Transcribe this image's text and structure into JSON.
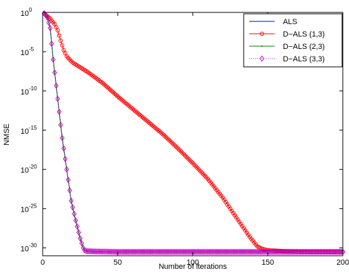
{
  "chart_data": {
    "type": "line",
    "title": "",
    "xlabel": "Number of iterations",
    "ylabel": "NMSE",
    "xlim": [
      0,
      200
    ],
    "ylim_log10": [
      -31,
      0
    ],
    "yscale": "log",
    "grid": false,
    "legend_placement": "top-right",
    "x_ticks": [
      0,
      50,
      100,
      150,
      200
    ],
    "x_tick_labels": [
      "0",
      "50",
      "100",
      "150",
      "200"
    ],
    "y_ticks_log10": [
      0,
      -5,
      -10,
      -15,
      -20,
      -25,
      -30
    ],
    "y_tick_labels": [
      {
        "base": "10",
        "exp": "0"
      },
      {
        "base": "10",
        "exp": "-5"
      },
      {
        "base": "10",
        "exp": "-10"
      },
      {
        "base": "10",
        "exp": "-15"
      },
      {
        "base": "10",
        "exp": "-20"
      },
      {
        "base": "10",
        "exp": "-25"
      },
      {
        "base": "10",
        "exp": "-30"
      }
    ],
    "series": [
      {
        "name": "ALS",
        "color": "#0000ff",
        "line_style": "solid",
        "marker": "none",
        "points_log10": [
          [
            1,
            -0.1
          ],
          [
            3,
            -0.6
          ],
          [
            5,
            -2.0
          ],
          [
            7,
            -6.0
          ],
          [
            10,
            -11.0
          ],
          [
            13,
            -16.0
          ],
          [
            16,
            -20.0
          ],
          [
            19,
            -24.0
          ],
          [
            22,
            -26.5
          ],
          [
            25,
            -28.8
          ],
          [
            27,
            -30.0
          ],
          [
            28,
            -30.3
          ],
          [
            29,
            -30.4
          ],
          [
            35,
            -30.45
          ],
          [
            50,
            -30.5
          ],
          [
            100,
            -30.5
          ],
          [
            150,
            -30.5
          ],
          [
            200,
            -30.5
          ]
        ]
      },
      {
        "name": "D−ALS (1,3)",
        "color": "#ff0000",
        "line_style": "solid",
        "marker": "circle",
        "points_log10": [
          [
            1,
            -0.15
          ],
          [
            5,
            -0.8
          ],
          [
            8,
            -1.5
          ],
          [
            10,
            -2.3
          ],
          [
            12,
            -3.6
          ],
          [
            14,
            -4.8
          ],
          [
            16,
            -5.6
          ],
          [
            20,
            -6.4
          ],
          [
            30,
            -7.6
          ],
          [
            40,
            -9.0
          ],
          [
            50,
            -10.7
          ],
          [
            60,
            -12.3
          ],
          [
            70,
            -13.9
          ],
          [
            80,
            -15.5
          ],
          [
            90,
            -17.3
          ],
          [
            100,
            -19.2
          ],
          [
            110,
            -21.2
          ],
          [
            120,
            -23.6
          ],
          [
            130,
            -26.4
          ],
          [
            138,
            -28.6
          ],
          [
            143,
            -29.8
          ],
          [
            146,
            -30.1
          ],
          [
            150,
            -30.3
          ],
          [
            160,
            -30.4
          ],
          [
            170,
            -30.45
          ],
          [
            200,
            -30.5
          ]
        ]
      },
      {
        "name": "D−ALS (2,3)",
        "color": "#008000",
        "line_style": "solid",
        "marker": "dot",
        "points_log10": [
          [
            1,
            -0.1
          ],
          [
            3,
            -0.6
          ],
          [
            5,
            -2.0
          ],
          [
            7,
            -6.0
          ],
          [
            10,
            -11.0
          ],
          [
            13,
            -16.0
          ],
          [
            16,
            -20.0
          ],
          [
            19,
            -24.0
          ],
          [
            22,
            -26.5
          ],
          [
            25,
            -28.8
          ],
          [
            27,
            -30.0
          ],
          [
            28,
            -30.3
          ],
          [
            29,
            -30.4
          ],
          [
            35,
            -30.45
          ],
          [
            50,
            -30.5
          ],
          [
            100,
            -30.5
          ],
          [
            150,
            -30.5
          ],
          [
            200,
            -30.5
          ]
        ]
      },
      {
        "name": "D−ALS (3,3)",
        "color": "#bf00bf",
        "line_style": "dotted",
        "marker": "diamond",
        "points_log10": [
          [
            1,
            -0.1
          ],
          [
            3,
            -0.6
          ],
          [
            5,
            -2.0
          ],
          [
            7,
            -6.0
          ],
          [
            10,
            -11.0
          ],
          [
            13,
            -16.0
          ],
          [
            16,
            -20.0
          ],
          [
            19,
            -24.0
          ],
          [
            22,
            -26.5
          ],
          [
            25,
            -28.8
          ],
          [
            27,
            -30.0
          ],
          [
            28,
            -30.3
          ],
          [
            29,
            -30.4
          ],
          [
            35,
            -30.45
          ],
          [
            50,
            -30.5
          ],
          [
            100,
            -30.5
          ],
          [
            150,
            -30.5
          ],
          [
            200,
            -30.5
          ]
        ]
      }
    ]
  }
}
